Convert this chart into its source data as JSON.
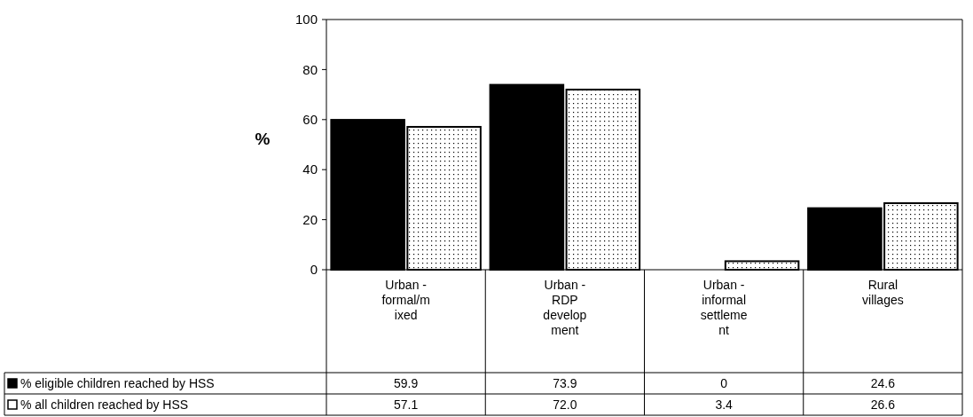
{
  "chart_data": {
    "type": "bar",
    "ylabel": "%",
    "categories": [
      "Urban - formal/mixed",
      "Urban - RDP development",
      "Urban - informal settlement",
      "Rural villages"
    ],
    "series": [
      {
        "name": "% eligible children reached by HSS",
        "color": "#000000",
        "values": [
          59.9,
          73.9,
          0,
          24.6
        ],
        "value_labels": [
          "59.9",
          "73.9",
          "0",
          "24.6"
        ]
      },
      {
        "name": "% all children reached by HSS",
        "color": "#ffffff",
        "values": [
          57.1,
          72.0,
          3.4,
          26.6
        ],
        "value_labels": [
          "57.1",
          "72.0",
          "3.4",
          "26.6"
        ]
      }
    ],
    "ylim": [
      0,
      100
    ],
    "yticks": [
      0,
      20,
      40,
      60,
      80,
      100
    ],
    "grid": false,
    "legend": "bottom left"
  }
}
